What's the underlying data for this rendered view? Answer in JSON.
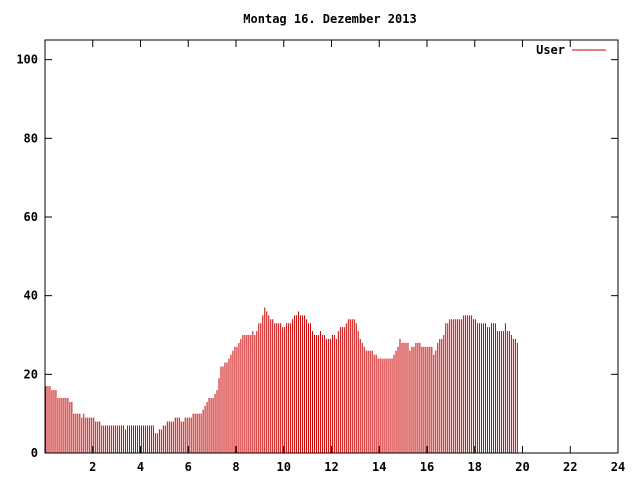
{
  "chart_data": {
    "type": "bar",
    "title": "Montag 16. Dezember 2013",
    "xlabel": "",
    "ylabel": "",
    "xlim": [
      0,
      24
    ],
    "ylim": [
      0,
      105
    ],
    "x_ticks": [
      "2",
      "4",
      "6",
      "8",
      "10",
      "12",
      "14",
      "16",
      "18",
      "20",
      "22",
      "24"
    ],
    "y_ticks": [
      "0",
      "20",
      "40",
      "60",
      "80",
      "100"
    ],
    "legend_position": "top-right",
    "grid": false,
    "series": [
      {
        "name": "User",
        "color": "#cc0000",
        "x_start": 0,
        "x_step": 0.0833,
        "values": [
          17,
          17,
          17,
          16,
          16,
          16,
          14,
          14,
          14,
          14,
          14,
          14,
          13,
          13,
          10,
          10,
          10,
          10,
          9,
          10,
          9,
          9,
          9,
          9,
          9,
          8,
          8,
          8,
          7,
          7,
          7,
          7,
          7,
          7,
          7,
          7,
          7,
          7,
          7,
          7,
          6,
          7,
          7,
          7,
          7,
          7,
          7,
          7,
          7,
          7,
          7,
          7,
          7,
          7,
          7,
          5,
          5,
          6,
          6,
          7,
          7,
          8,
          8,
          8,
          8,
          9,
          9,
          9,
          8,
          8,
          9,
          9,
          9,
          9,
          10,
          10,
          10,
          10,
          10,
          11,
          12,
          13,
          14,
          14,
          14,
          15,
          16,
          19,
          22,
          22,
          23,
          23,
          24,
          25,
          26,
          27,
          27,
          28,
          29,
          30,
          30,
          30,
          30,
          30,
          31,
          30,
          31,
          33,
          33,
          35,
          37,
          36,
          35,
          34,
          34,
          33,
          33,
          33,
          33,
          32,
          32,
          33,
          33,
          33,
          34,
          35,
          35,
          36,
          35,
          35,
          35,
          34,
          33,
          33,
          31,
          30,
          30,
          30,
          31,
          30,
          30,
          29,
          29,
          29,
          30,
          30,
          29,
          31,
          32,
          32,
          32,
          33,
          34,
          34,
          34,
          34,
          33,
          31,
          29,
          28,
          27,
          26,
          26,
          26,
          26,
          25,
          25,
          24,
          24,
          24,
          24,
          24,
          24,
          24,
          24,
          25,
          26,
          27,
          29,
          28,
          28,
          28,
          28,
          26,
          27,
          27,
          28,
          28,
          28,
          27,
          27,
          27,
          27,
          27,
          27,
          25,
          26,
          28,
          29,
          29,
          30,
          33,
          33,
          34,
          34,
          34,
          34,
          34,
          34,
          34,
          35,
          35,
          35,
          35,
          35,
          34,
          34,
          33,
          33,
          33,
          33,
          33,
          32,
          32,
          33,
          33,
          33,
          31,
          31,
          31,
          31,
          33,
          31,
          31,
          30,
          29,
          29,
          28
        ]
      }
    ]
  }
}
